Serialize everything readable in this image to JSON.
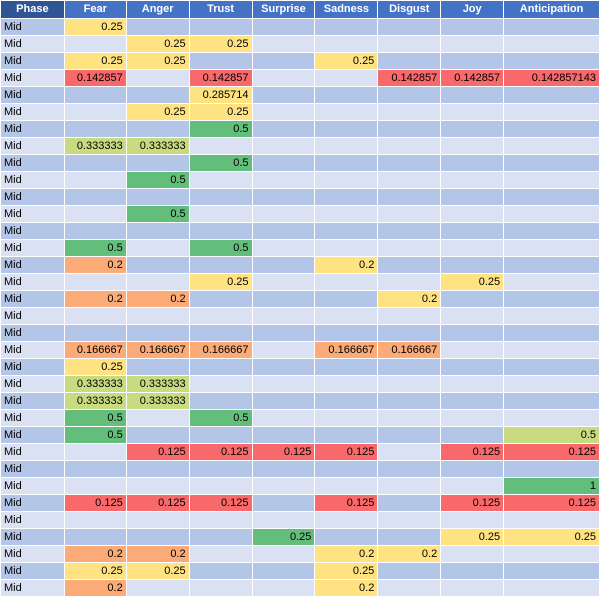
{
  "sheet": {
    "headers": [
      "Phase",
      "Fear",
      "Anger",
      "Trust",
      "Surprise",
      "Sadness",
      "Disgust",
      "Joy",
      "Anticipation"
    ],
    "scale_colors": {
      "yellow": "#ffe383",
      "orange": "#fbab77",
      "red": "#f8696b",
      "green": "#63be7b",
      "light_green": "#c8db80",
      "band_dark": "#b4c6e7",
      "band_light": "#d9e1f2",
      "header": "#4472c4"
    },
    "rows": [
      {
        "phase": "Mid",
        "cells": [
          {
            "v": "0.25",
            "c": "y"
          },
          {
            "v": ""
          },
          {
            "v": ""
          },
          {
            "v": ""
          },
          {
            "v": ""
          },
          {
            "v": ""
          },
          {
            "v": ""
          },
          {
            "v": ""
          }
        ]
      },
      {
        "phase": "Mid",
        "cells": [
          {
            "v": ""
          },
          {
            "v": "0.25",
            "c": "y"
          },
          {
            "v": "0.25",
            "c": "y"
          },
          {
            "v": ""
          },
          {
            "v": ""
          },
          {
            "v": ""
          },
          {
            "v": ""
          },
          {
            "v": ""
          }
        ]
      },
      {
        "phase": "Mid",
        "cells": [
          {
            "v": "0.25",
            "c": "y"
          },
          {
            "v": "0.25",
            "c": "y"
          },
          {
            "v": ""
          },
          {
            "v": ""
          },
          {
            "v": "0.25",
            "c": "y"
          },
          {
            "v": ""
          },
          {
            "v": ""
          },
          {
            "v": ""
          }
        ]
      },
      {
        "phase": "Mid",
        "cells": [
          {
            "v": "0.142857",
            "c": "r"
          },
          {
            "v": ""
          },
          {
            "v": "0.142857",
            "c": "r"
          },
          {
            "v": ""
          },
          {
            "v": ""
          },
          {
            "v": "0.142857",
            "c": "r"
          },
          {
            "v": "0.142857",
            "c": "r"
          },
          {
            "v": "0.142857143",
            "c": "r"
          }
        ]
      },
      {
        "phase": "Mid",
        "cells": [
          {
            "v": ""
          },
          {
            "v": ""
          },
          {
            "v": "0.285714",
            "c": "y"
          },
          {
            "v": ""
          },
          {
            "v": ""
          },
          {
            "v": ""
          },
          {
            "v": ""
          },
          {
            "v": ""
          }
        ]
      },
      {
        "phase": "Mid",
        "cells": [
          {
            "v": ""
          },
          {
            "v": "0.25",
            "c": "y"
          },
          {
            "v": "0.25",
            "c": "y"
          },
          {
            "v": ""
          },
          {
            "v": ""
          },
          {
            "v": ""
          },
          {
            "v": ""
          },
          {
            "v": ""
          }
        ]
      },
      {
        "phase": "Mid",
        "cells": [
          {
            "v": ""
          },
          {
            "v": ""
          },
          {
            "v": "0.5",
            "c": "g"
          },
          {
            "v": ""
          },
          {
            "v": ""
          },
          {
            "v": ""
          },
          {
            "v": ""
          },
          {
            "v": ""
          }
        ]
      },
      {
        "phase": "Mid",
        "cells": [
          {
            "v": "0.333333",
            "c": "lg"
          },
          {
            "v": "0.333333",
            "c": "lg"
          },
          {
            "v": ""
          },
          {
            "v": ""
          },
          {
            "v": ""
          },
          {
            "v": ""
          },
          {
            "v": ""
          },
          {
            "v": ""
          }
        ]
      },
      {
        "phase": "Mid",
        "cells": [
          {
            "v": ""
          },
          {
            "v": ""
          },
          {
            "v": "0.5",
            "c": "g"
          },
          {
            "v": ""
          },
          {
            "v": ""
          },
          {
            "v": ""
          },
          {
            "v": ""
          },
          {
            "v": ""
          }
        ]
      },
      {
        "phase": "Mid",
        "cells": [
          {
            "v": ""
          },
          {
            "v": "0.5",
            "c": "g"
          },
          {
            "v": ""
          },
          {
            "v": ""
          },
          {
            "v": ""
          },
          {
            "v": ""
          },
          {
            "v": ""
          },
          {
            "v": ""
          }
        ]
      },
      {
        "phase": "Mid",
        "cells": [
          {
            "v": ""
          },
          {
            "v": ""
          },
          {
            "v": ""
          },
          {
            "v": ""
          },
          {
            "v": ""
          },
          {
            "v": ""
          },
          {
            "v": ""
          },
          {
            "v": ""
          }
        ]
      },
      {
        "phase": "Mid",
        "cells": [
          {
            "v": ""
          },
          {
            "v": "0.5",
            "c": "g"
          },
          {
            "v": ""
          },
          {
            "v": ""
          },
          {
            "v": ""
          },
          {
            "v": ""
          },
          {
            "v": ""
          },
          {
            "v": ""
          }
        ]
      },
      {
        "phase": "Mid",
        "cells": [
          {
            "v": ""
          },
          {
            "v": ""
          },
          {
            "v": ""
          },
          {
            "v": ""
          },
          {
            "v": ""
          },
          {
            "v": ""
          },
          {
            "v": ""
          },
          {
            "v": ""
          }
        ]
      },
      {
        "phase": "Mid",
        "cells": [
          {
            "v": "0.5",
            "c": "g"
          },
          {
            "v": ""
          },
          {
            "v": "0.5",
            "c": "g"
          },
          {
            "v": ""
          },
          {
            "v": ""
          },
          {
            "v": ""
          },
          {
            "v": ""
          },
          {
            "v": ""
          }
        ]
      },
      {
        "phase": "Mid",
        "cells": [
          {
            "v": "0.2",
            "c": "o"
          },
          {
            "v": ""
          },
          {
            "v": ""
          },
          {
            "v": ""
          },
          {
            "v": "0.2",
            "c": "y"
          },
          {
            "v": ""
          },
          {
            "v": ""
          },
          {
            "v": ""
          }
        ]
      },
      {
        "phase": "Mid",
        "cells": [
          {
            "v": ""
          },
          {
            "v": ""
          },
          {
            "v": "0.25",
            "c": "y"
          },
          {
            "v": ""
          },
          {
            "v": ""
          },
          {
            "v": ""
          },
          {
            "v": "0.25",
            "c": "y"
          },
          {
            "v": ""
          }
        ]
      },
      {
        "phase": "Mid",
        "cells": [
          {
            "v": "0.2",
            "c": "o"
          },
          {
            "v": "0.2",
            "c": "o"
          },
          {
            "v": ""
          },
          {
            "v": ""
          },
          {
            "v": ""
          },
          {
            "v": "0.2",
            "c": "y"
          },
          {
            "v": ""
          },
          {
            "v": ""
          }
        ]
      },
      {
        "phase": "Mid",
        "cells": [
          {
            "v": ""
          },
          {
            "v": ""
          },
          {
            "v": ""
          },
          {
            "v": ""
          },
          {
            "v": ""
          },
          {
            "v": ""
          },
          {
            "v": ""
          },
          {
            "v": ""
          }
        ]
      },
      {
        "phase": "Mid",
        "cells": [
          {
            "v": ""
          },
          {
            "v": ""
          },
          {
            "v": ""
          },
          {
            "v": ""
          },
          {
            "v": ""
          },
          {
            "v": ""
          },
          {
            "v": ""
          },
          {
            "v": ""
          }
        ]
      },
      {
        "phase": "Mid",
        "cells": [
          {
            "v": "0.166667",
            "c": "o"
          },
          {
            "v": "0.166667",
            "c": "o"
          },
          {
            "v": "0.166667",
            "c": "o"
          },
          {
            "v": ""
          },
          {
            "v": "0.166667",
            "c": "o"
          },
          {
            "v": "0.166667",
            "c": "o"
          },
          {
            "v": ""
          },
          {
            "v": ""
          }
        ]
      },
      {
        "phase": "Mid",
        "cells": [
          {
            "v": "0.25",
            "c": "y"
          },
          {
            "v": ""
          },
          {
            "v": ""
          },
          {
            "v": ""
          },
          {
            "v": ""
          },
          {
            "v": ""
          },
          {
            "v": ""
          },
          {
            "v": ""
          }
        ]
      },
      {
        "phase": "Mid",
        "cells": [
          {
            "v": "0.333333",
            "c": "lg"
          },
          {
            "v": "0.333333",
            "c": "lg"
          },
          {
            "v": ""
          },
          {
            "v": ""
          },
          {
            "v": ""
          },
          {
            "v": ""
          },
          {
            "v": ""
          },
          {
            "v": ""
          }
        ]
      },
      {
        "phase": "Mid",
        "cells": [
          {
            "v": "0.333333",
            "c": "lg"
          },
          {
            "v": "0.333333",
            "c": "lg"
          },
          {
            "v": ""
          },
          {
            "v": ""
          },
          {
            "v": ""
          },
          {
            "v": ""
          },
          {
            "v": ""
          },
          {
            "v": ""
          }
        ]
      },
      {
        "phase": "Mid",
        "cells": [
          {
            "v": "0.5",
            "c": "g"
          },
          {
            "v": ""
          },
          {
            "v": "0.5",
            "c": "g"
          },
          {
            "v": ""
          },
          {
            "v": ""
          },
          {
            "v": ""
          },
          {
            "v": ""
          },
          {
            "v": ""
          }
        ]
      },
      {
        "phase": "Mid",
        "cells": [
          {
            "v": "0.5",
            "c": "g"
          },
          {
            "v": ""
          },
          {
            "v": ""
          },
          {
            "v": ""
          },
          {
            "v": ""
          },
          {
            "v": ""
          },
          {
            "v": ""
          },
          {
            "v": "0.5",
            "c": "lg"
          }
        ]
      },
      {
        "phase": "Mid",
        "cells": [
          {
            "v": ""
          },
          {
            "v": "0.125",
            "c": "r"
          },
          {
            "v": "0.125",
            "c": "r"
          },
          {
            "v": "0.125",
            "c": "r"
          },
          {
            "v": "0.125",
            "c": "r"
          },
          {
            "v": ""
          },
          {
            "v": "0.125",
            "c": "r"
          },
          {
            "v": "0.125",
            "c": "r"
          }
        ]
      },
      {
        "phase": "Mid",
        "cells": [
          {
            "v": ""
          },
          {
            "v": ""
          },
          {
            "v": ""
          },
          {
            "v": ""
          },
          {
            "v": ""
          },
          {
            "v": ""
          },
          {
            "v": ""
          },
          {
            "v": ""
          }
        ]
      },
      {
        "phase": "Mid",
        "cells": [
          {
            "v": ""
          },
          {
            "v": ""
          },
          {
            "v": ""
          },
          {
            "v": ""
          },
          {
            "v": ""
          },
          {
            "v": ""
          },
          {
            "v": ""
          },
          {
            "v": "1",
            "c": "g"
          }
        ]
      },
      {
        "phase": "Mid",
        "cells": [
          {
            "v": "0.125",
            "c": "r"
          },
          {
            "v": "0.125",
            "c": "r"
          },
          {
            "v": "0.125",
            "c": "r"
          },
          {
            "v": ""
          },
          {
            "v": "0.125",
            "c": "r"
          },
          {
            "v": ""
          },
          {
            "v": "0.125",
            "c": "r"
          },
          {
            "v": "0.125",
            "c": "r"
          }
        ]
      },
      {
        "phase": "Mid",
        "cells": [
          {
            "v": ""
          },
          {
            "v": ""
          },
          {
            "v": ""
          },
          {
            "v": ""
          },
          {
            "v": ""
          },
          {
            "v": ""
          },
          {
            "v": ""
          },
          {
            "v": ""
          }
        ]
      },
      {
        "phase": "Mid",
        "cells": [
          {
            "v": ""
          },
          {
            "v": ""
          },
          {
            "v": ""
          },
          {
            "v": "0.25",
            "c": "g"
          },
          {
            "v": ""
          },
          {
            "v": ""
          },
          {
            "v": "0.25",
            "c": "y"
          },
          {
            "v": "0.25",
            "c": "y"
          }
        ]
      },
      {
        "phase": "Mid",
        "cells": [
          {
            "v": "0.2",
            "c": "o"
          },
          {
            "v": "0.2",
            "c": "o"
          },
          {
            "v": ""
          },
          {
            "v": ""
          },
          {
            "v": "0.2",
            "c": "y"
          },
          {
            "v": "0.2",
            "c": "y"
          },
          {
            "v": ""
          },
          {
            "v": ""
          }
        ]
      },
      {
        "phase": "Mid",
        "cells": [
          {
            "v": "0.25",
            "c": "y"
          },
          {
            "v": "0.25",
            "c": "y"
          },
          {
            "v": ""
          },
          {
            "v": ""
          },
          {
            "v": "0.25",
            "c": "y"
          },
          {
            "v": ""
          },
          {
            "v": ""
          },
          {
            "v": ""
          }
        ]
      },
      {
        "phase": "Mid",
        "cells": [
          {
            "v": "0.2",
            "c": "o"
          },
          {
            "v": ""
          },
          {
            "v": ""
          },
          {
            "v": ""
          },
          {
            "v": "0.2",
            "c": "y"
          },
          {
            "v": ""
          },
          {
            "v": ""
          },
          {
            "v": ""
          }
        ]
      }
    ]
  }
}
